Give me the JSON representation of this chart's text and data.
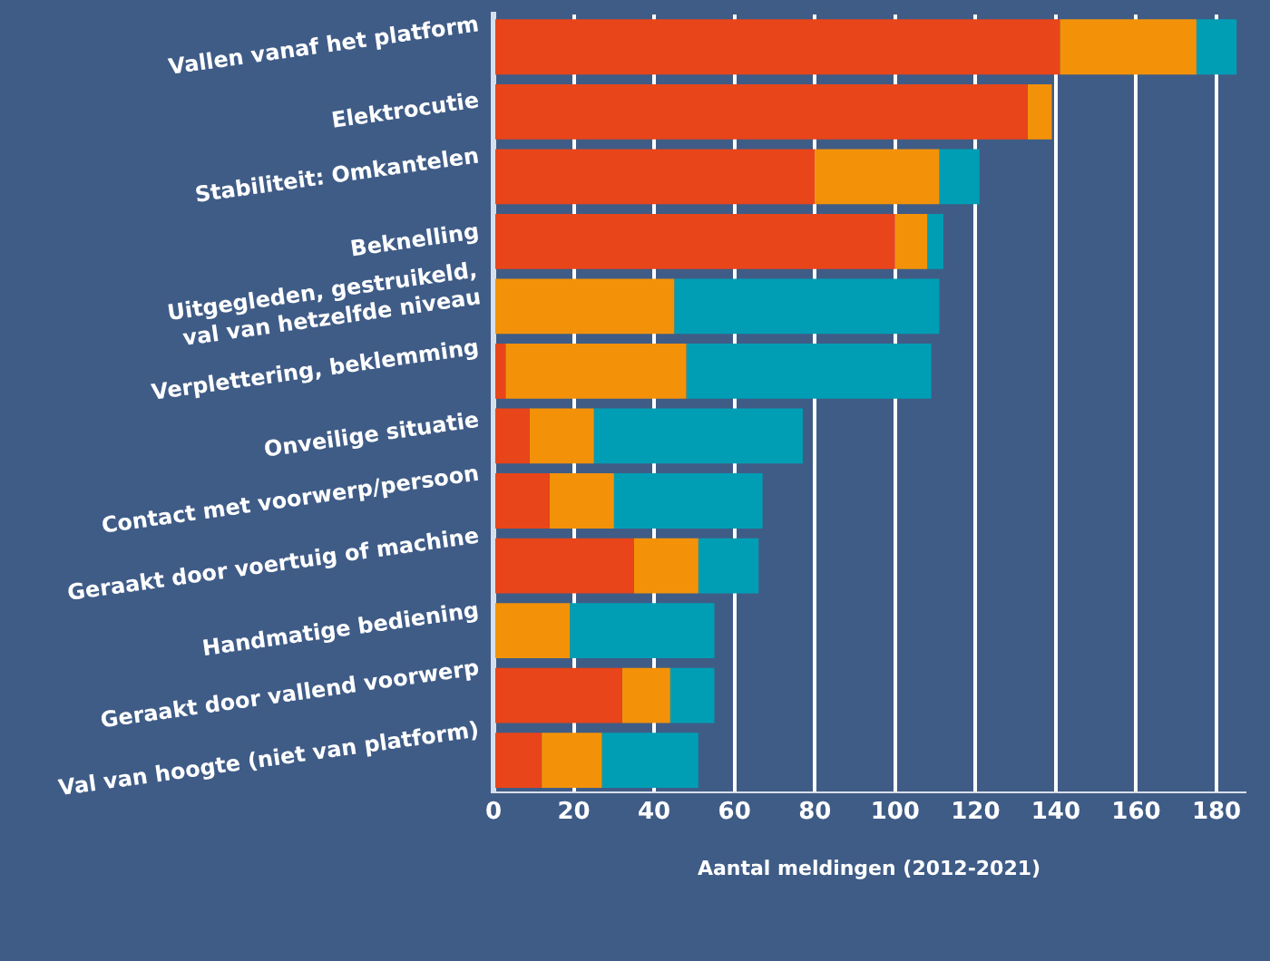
{
  "chart_data": {
    "type": "bar",
    "orientation": "horizontal",
    "stacked": true,
    "xlabel": "Aantal meldingen (2012-2021)",
    "categories": [
      "Vallen vanaf het platform",
      "Elektrocutie",
      "Stabiliteit: Omkantelen",
      "Beknelling",
      "Uitgegleden, gestruikeld,\nval van hetzelfde niveau",
      "Verplettering, beklemming",
      "Onveilige situatie",
      "Contact met voorwerp/persoon",
      "Geraakt door voertuig of machine",
      "Handmatige bediening",
      "Geraakt door vallend voorwerp",
      "Val van hoogte (niet van platform)"
    ],
    "series": [
      {
        "color": "#e8451a",
        "values": [
          141,
          133,
          80,
          100,
          0,
          3,
          9,
          14,
          35,
          0,
          32,
          12
        ]
      },
      {
        "color": "#f39208",
        "values": [
          34,
          6,
          31,
          8,
          45,
          45,
          16,
          16,
          16,
          19,
          12,
          15
        ]
      },
      {
        "color": "#009eb4",
        "values": [
          10,
          0,
          10,
          4,
          66,
          61,
          52,
          37,
          15,
          36,
          11,
          24
        ]
      }
    ],
    "xlim": [
      0,
      187
    ],
    "xticks": [
      0,
      20,
      40,
      60,
      80,
      100,
      120,
      140,
      160,
      180
    ],
    "grid": "x",
    "legend": false
  }
}
